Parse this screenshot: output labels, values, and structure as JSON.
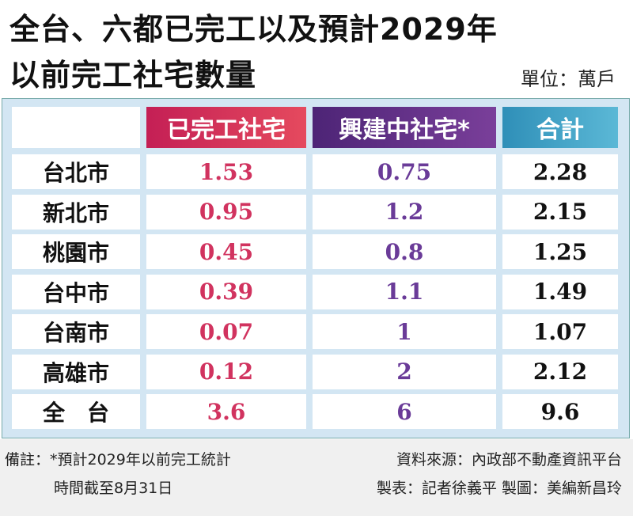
{
  "title": {
    "lines": [
      "全台、六都已完工以及預計2029年",
      "以前完工社宅數量"
    ],
    "unit": "單位：萬戶"
  },
  "table": {
    "header": [
      "已完工社宅",
      "興建中社宅*",
      "合計"
    ],
    "rows": [
      [
        "台北市",
        1.53,
        0.75,
        2.28
      ],
      [
        "新北市",
        0.95,
        1.2,
        2.15
      ],
      [
        "桃園市",
        0.45,
        0.8,
        1.25
      ],
      [
        "台中市",
        0.39,
        1.1,
        1.49
      ],
      [
        "台南市",
        0.07,
        1,
        1.07
      ],
      [
        "高雄市",
        0.12,
        2,
        2.12
      ],
      [
        "全　台",
        3.6,
        6,
        9.6
      ]
    ]
  },
  "footer": {
    "note": [
      "備註：*預計2029年以前完工統計",
      "時間截至8月31日"
    ],
    "credits": [
      "資料來源：內政部不動產資訊平台",
      "製表：記者徐義平 製圖：美編新昌玲"
    ]
  }
}
